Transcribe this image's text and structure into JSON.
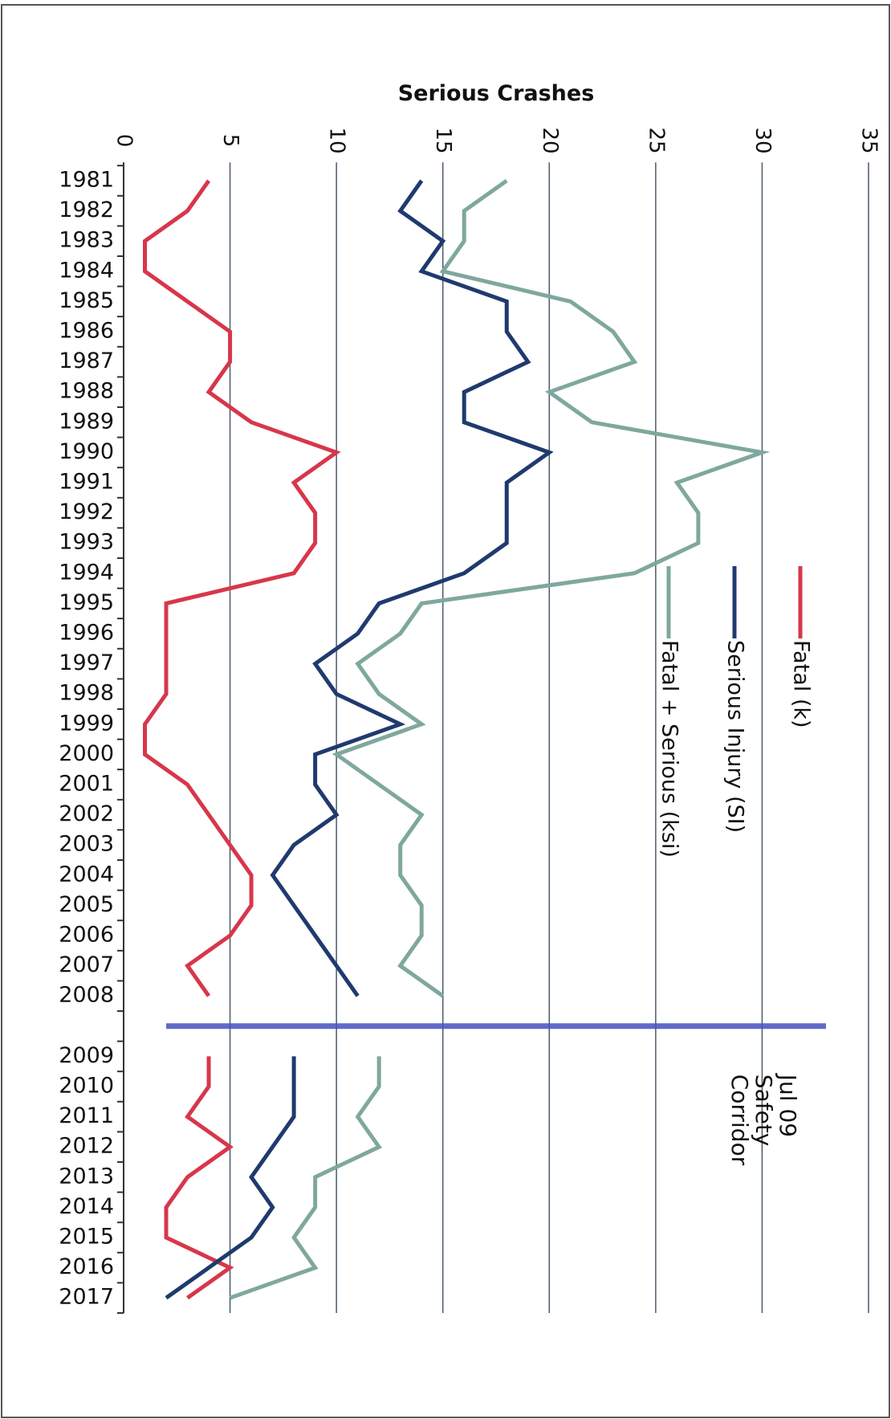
{
  "chart_data": {
    "type": "line",
    "orientation": "horizontal",
    "title": "Serious Crashes",
    "categories": [
      "1981",
      "1982",
      "1983",
      "1984",
      "1985",
      "1986",
      "1987",
      "1988",
      "1989",
      "1990",
      "1991",
      "1992",
      "1993",
      "1994",
      "1995",
      "1996",
      "1997",
      "1998",
      "1999",
      "2000",
      "2001",
      "2002",
      "2003",
      "2004",
      "2005",
      "2006",
      "2007",
      "2008",
      null,
      "2009",
      "2010",
      "2011",
      "2012",
      "2013",
      "2014",
      "2015",
      "2016",
      "2017"
    ],
    "series": [
      {
        "name": "Fatal (k)",
        "color": "#d7374a",
        "values": [
          4,
          3,
          1,
          1,
          3,
          5,
          5,
          4,
          6,
          10,
          8,
          9,
          9,
          8,
          2,
          2,
          2,
          2,
          1,
          1,
          3,
          4,
          5,
          6,
          6,
          5,
          3,
          4,
          null,
          4,
          4,
          3,
          5,
          3,
          2,
          2,
          5,
          3
        ]
      },
      {
        "name": "Serious Injury (SI)",
        "color": "#1f3a6e",
        "values": [
          14,
          13,
          15,
          14,
          18,
          18,
          19,
          16,
          16,
          20,
          18,
          18,
          18,
          16,
          12,
          11,
          9,
          10,
          13,
          9,
          9,
          10,
          8,
          7,
          8,
          9,
          10,
          11,
          null,
          8,
          8,
          8,
          7,
          6,
          7,
          6,
          4,
          2
        ]
      },
      {
        "name": "Fatal + Serious (ksi)",
        "color": "#7fa89c",
        "values": [
          18,
          16,
          16,
          15,
          21,
          23,
          24,
          20,
          22,
          30,
          26,
          27,
          27,
          24,
          14,
          13,
          11,
          12,
          14,
          10,
          12,
          14,
          13,
          13,
          14,
          14,
          13,
          15,
          null,
          12,
          12,
          11,
          12,
          9,
          9,
          8,
          9,
          5
        ]
      }
    ],
    "ylim": [
      0,
      35
    ],
    "yticks": [
      0,
      5,
      10,
      15,
      20,
      25,
      30,
      35
    ],
    "grid": true,
    "annotation": [
      "Jul 09",
      "Safety",
      "Corridor"
    ]
  }
}
